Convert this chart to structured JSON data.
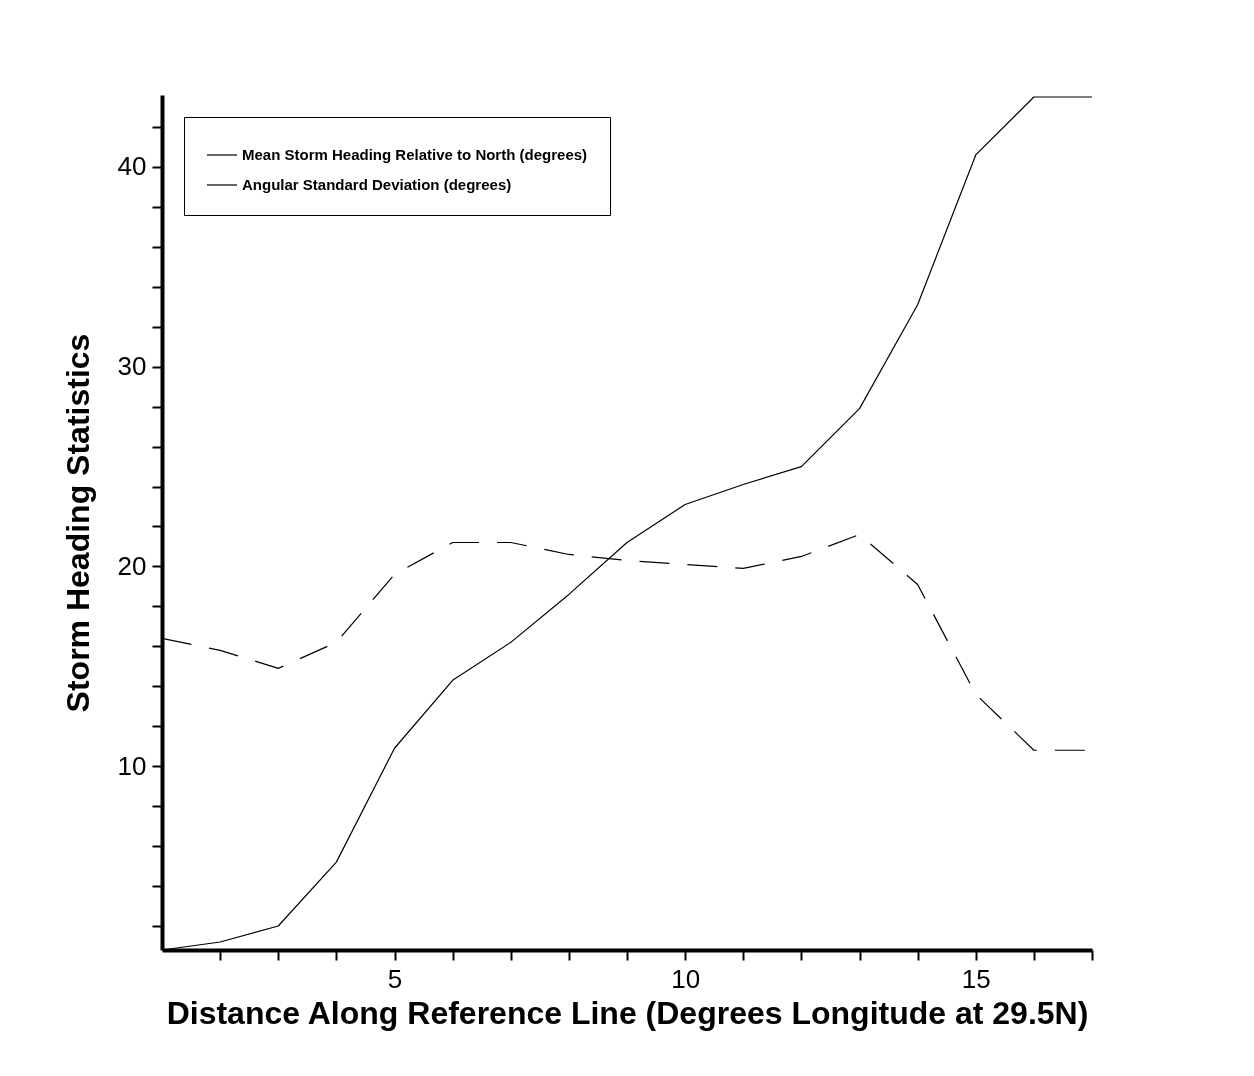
{
  "chart_data": {
    "type": "line",
    "xlabel": "Distance Along Reference Line (Degrees Longitude at 29.5N)",
    "ylabel": "Storm Heading Statistics",
    "x": [
      1,
      2,
      3,
      4,
      5,
      6,
      7,
      8,
      9,
      10,
      11,
      12,
      13,
      14,
      15,
      16,
      17
    ],
    "series": [
      {
        "name": "Mean Storm Heading Relative to North (degrees)",
        "color": "#000000",
        "line_style": "solid",
        "values": [
          0.8,
          1.2,
          2.0,
          5.2,
          10.9,
          14.3,
          16.2,
          18.6,
          21.2,
          23.1,
          24.1,
          25.0,
          27.9,
          33.1,
          40.6,
          43.5,
          43.5
        ]
      },
      {
        "name": "Angular Standard Deviation (degrees)",
        "color": "#000000",
        "line_style": "dashed",
        "values": [
          16.4,
          15.8,
          14.9,
          16.2,
          19.6,
          21.2,
          21.2,
          20.6,
          20.3,
          20.1,
          19.9,
          20.5,
          21.6,
          19.1,
          13.6,
          10.8,
          10.8
        ]
      }
    ],
    "xlim": [
      1,
      17
    ],
    "ylim": [
      0.8,
      43.6
    ],
    "xticks": [
      {
        "value": 2,
        "label": null
      },
      {
        "value": 3,
        "label": null
      },
      {
        "value": 4,
        "label": null
      },
      5,
      {
        "value": 6,
        "label": null
      },
      {
        "value": 7,
        "label": null
      },
      {
        "value": 8,
        "label": null
      },
      {
        "value": 9,
        "label": null
      },
      10,
      {
        "value": 11,
        "label": null
      },
      {
        "value": 12,
        "label": null
      },
      {
        "value": 13,
        "label": null
      },
      {
        "value": 14,
        "label": null
      },
      15,
      {
        "value": 16,
        "label": null
      },
      {
        "value": 17,
        "label": null
      }
    ],
    "yticks": [
      {
        "value": 2,
        "label": null
      },
      {
        "value": 4,
        "label": null
      },
      {
        "value": 6,
        "label": null
      },
      {
        "value": 8,
        "label": null
      },
      10,
      {
        "value": 12,
        "label": null
      },
      {
        "value": 14,
        "label": null
      },
      {
        "value": 16,
        "label": null
      },
      {
        "value": 18,
        "label": null
      },
      20,
      {
        "value": 22,
        "label": null
      },
      {
        "value": 24,
        "label": null
      },
      {
        "value": 26,
        "label": null
      },
      {
        "value": 28,
        "label": null
      },
      30,
      {
        "value": 32,
        "label": null
      },
      {
        "value": 34,
        "label": null
      },
      {
        "value": 36,
        "label": null
      },
      {
        "value": 38,
        "label": null
      },
      40,
      {
        "value": 42,
        "label": null
      }
    ],
    "grid": false,
    "legend": "top left",
    "marker": "none"
  }
}
